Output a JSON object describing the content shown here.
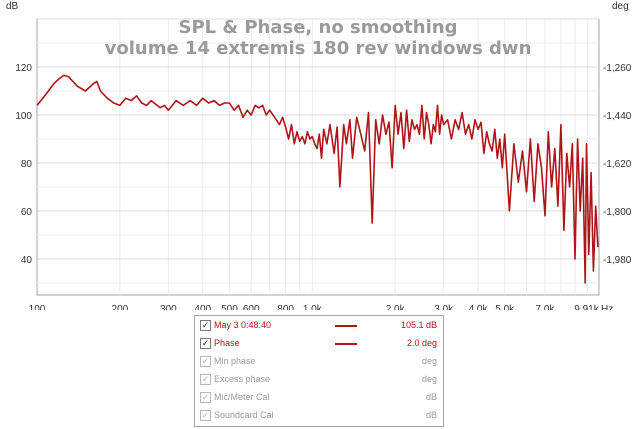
{
  "chart_data": {
    "type": "line",
    "title_lines": [
      "SPL & Phase, no smoothing",
      "volume 14 extremis 180 rev windows dwn"
    ],
    "ylabel_left": "dB",
    "ylabel_right": "deg",
    "xlabel": "Hz",
    "x_scale": "log",
    "xlim": [
      100,
      11000
    ],
    "ylim": [
      25,
      140
    ],
    "grid": true,
    "x_ticks": [
      {
        "value": 100,
        "label": "100"
      },
      {
        "value": 200,
        "label": "200"
      },
      {
        "value": 300,
        "label": "300"
      },
      {
        "value": 400,
        "label": "400"
      },
      {
        "value": 500,
        "label": "500"
      },
      {
        "value": 600,
        "label": "600"
      },
      {
        "value": 800,
        "label": "800"
      },
      {
        "value": 1000,
        "label": "1.0k"
      },
      {
        "value": 2000,
        "label": "2.0k"
      },
      {
        "value": 3000,
        "label": "3.0k"
      },
      {
        "value": 4000,
        "label": "4.0k"
      },
      {
        "value": 5000,
        "label": "5.0k"
      },
      {
        "value": 7000,
        "label": "7.0k"
      },
      {
        "value": 9910,
        "label": "9.91k"
      }
    ],
    "y_ticks_left": [
      {
        "value": 40,
        "label": "40"
      },
      {
        "value": 60,
        "label": "60"
      },
      {
        "value": 80,
        "label": "80"
      },
      {
        "value": 100,
        "label": "100"
      },
      {
        "value": 120,
        "label": "120"
      }
    ],
    "y_ticks_right": [
      {
        "value": 120,
        "label": "-1,260"
      },
      {
        "value": 100,
        "label": "-1,440"
      },
      {
        "value": 80,
        "label": "-1,620"
      },
      {
        "value": 60,
        "label": "-1,800"
      },
      {
        "value": 40,
        "label": "-1,980"
      }
    ],
    "series": [
      {
        "name": "May 3 0:48:40",
        "color": "#b01418",
        "x": [
          100,
          105,
          110,
          115,
          120,
          125,
          130,
          135,
          140,
          150,
          160,
          165,
          170,
          180,
          190,
          200,
          210,
          220,
          230,
          240,
          250,
          260,
          280,
          290,
          300,
          320,
          340,
          360,
          380,
          400,
          420,
          440,
          460,
          480,
          500,
          520,
          540,
          560,
          580,
          600,
          620,
          640,
          660,
          680,
          700,
          720,
          740,
          760,
          780,
          800,
          820,
          840,
          860,
          880,
          900,
          920,
          940,
          960,
          980,
          1000,
          1020,
          1040,
          1060,
          1080,
          1100,
          1130,
          1160,
          1200,
          1230,
          1260,
          1300,
          1330,
          1370,
          1400,
          1450,
          1500,
          1550,
          1600,
          1650,
          1700,
          1750,
          1800,
          1850,
          1900,
          1950,
          2000,
          2050,
          2100,
          2150,
          2200,
          2250,
          2300,
          2350,
          2400,
          2450,
          2500,
          2550,
          2600,
          2650,
          2700,
          2750,
          2800,
          2850,
          2900,
          2950,
          3000,
          3100,
          3200,
          3300,
          3400,
          3500,
          3600,
          3700,
          3800,
          3900,
          4000,
          4100,
          4200,
          4300,
          4400,
          4500,
          4600,
          4700,
          4800,
          4900,
          5000,
          5200,
          5400,
          5600,
          5800,
          6000,
          6200,
          6400,
          6600,
          6800,
          7000,
          7200,
          7400,
          7600,
          7800,
          8000,
          8200,
          8400,
          8600,
          8800,
          9000,
          9200,
          9400,
          9600,
          9800,
          9910,
          10100,
          10300,
          10500,
          10700,
          10900
        ],
        "y": [
          104,
          107,
          110,
          113,
          115,
          116.5,
          116,
          114,
          112,
          110,
          113,
          114,
          110,
          107,
          105,
          104,
          107,
          106,
          108,
          105,
          104,
          106,
          103,
          104,
          102,
          106,
          104,
          106,
          104,
          107,
          105,
          106,
          104,
          105,
          105,
          102,
          104,
          99,
          102,
          100,
          104,
          103,
          104,
          100,
          102,
          100,
          98,
          96,
          99,
          95,
          90,
          96,
          88,
          93,
          89,
          91,
          88,
          93,
          90,
          91,
          88,
          86,
          92,
          82,
          94,
          88,
          96,
          84,
          95,
          70,
          96,
          88,
          98,
          82,
          99,
          92,
          85,
          101,
          55,
          98,
          88,
          100,
          92,
          97,
          78,
          104,
          92,
          101,
          86,
          102,
          89,
          98,
          94,
          96,
          92,
          104,
          90,
          101,
          96,
          88,
          96,
          93,
          104,
          92,
          100,
          96,
          98,
          90,
          98,
          94,
          101,
          92,
          96,
          90,
          98,
          94,
          97,
          84,
          93,
          88,
          85,
          94,
          82,
          90,
          78,
          92,
          60,
          88,
          72,
          85,
          68,
          90,
          64,
          88,
          78,
          58,
          93,
          70,
          86,
          62,
          96,
          52,
          84,
          70,
          88,
          40,
          90,
          60,
          82,
          30,
          88,
          42,
          76,
          35,
          62,
          45
        ]
      }
    ],
    "legend": [
      {
        "label": "May 3 0:48:40",
        "value": "105.1 dB",
        "checked": true,
        "enabled": true,
        "swatch": true
      },
      {
        "label": "Phase",
        "value": "2.0 deg",
        "checked": true,
        "enabled": true,
        "swatch": true
      },
      {
        "label": "Min phase",
        "value": "deg",
        "checked": true,
        "enabled": false,
        "swatch": false
      },
      {
        "label": "Excess phase",
        "value": "deg",
        "checked": true,
        "enabled": false,
        "swatch": false
      },
      {
        "label": "Mic/Meter Cal",
        "value": "dB",
        "checked": true,
        "enabled": false,
        "swatch": false
      },
      {
        "label": "Soundcard Cal",
        "value": "dB",
        "checked": true,
        "enabled": false,
        "swatch": false
      }
    ]
  }
}
